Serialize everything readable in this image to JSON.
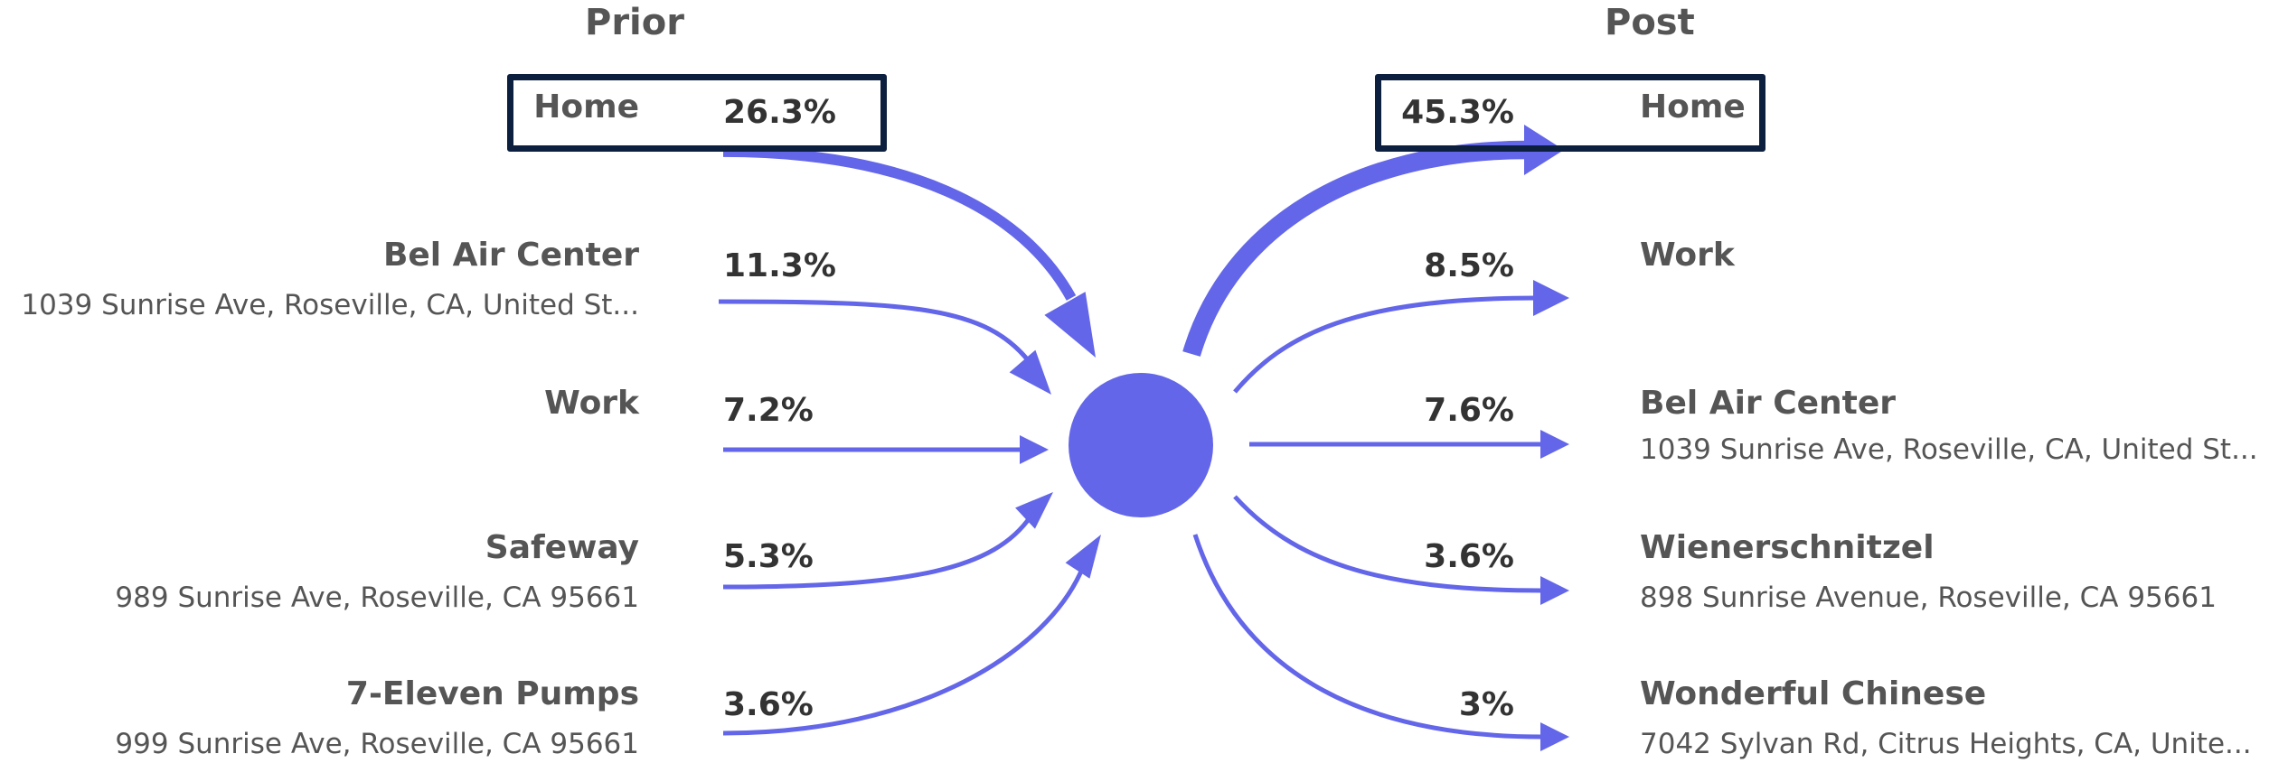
{
  "prior": {
    "title": "Prior",
    "items": [
      {
        "name": "Home",
        "address": "",
        "percent": "26.3%",
        "value": 26.3,
        "highlighted": true
      },
      {
        "name": "Bel Air Center",
        "address": "1039 Sunrise Ave, Roseville, CA, United St...",
        "percent": "11.3%",
        "value": 11.3
      },
      {
        "name": "Work",
        "address": "",
        "percent": "7.2%",
        "value": 7.2
      },
      {
        "name": "Safeway",
        "address": "989 Sunrise Ave, Roseville, CA 95661",
        "percent": "5.3%",
        "value": 5.3
      },
      {
        "name": "7-Eleven Pumps",
        "address": "999 Sunrise Ave, Roseville, CA 95661",
        "percent": "3.6%",
        "value": 3.6
      }
    ]
  },
  "post": {
    "title": "Post",
    "items": [
      {
        "name": "Home",
        "address": "",
        "percent": "45.3%",
        "value": 45.3,
        "highlighted": true
      },
      {
        "name": "Work",
        "address": "",
        "percent": "8.5%",
        "value": 8.5
      },
      {
        "name": "Bel Air Center",
        "address": "1039 Sunrise Ave, Roseville, CA, United St...",
        "percent": "7.6%",
        "value": 7.6
      },
      {
        "name": "Wienerschnitzel",
        "address": "898 Sunrise Avenue, Roseville, CA 95661",
        "percent": "3.6%",
        "value": 3.6
      },
      {
        "name": "Wonderful Chinese",
        "address": "7042 Sylvan Rd, Citrus Heights, CA, Unite...",
        "percent": "3%",
        "value": 3.0
      }
    ]
  },
  "colors": {
    "flow": "#6366e8",
    "highlight_border": "#0d1f3f",
    "text": "#555555"
  }
}
